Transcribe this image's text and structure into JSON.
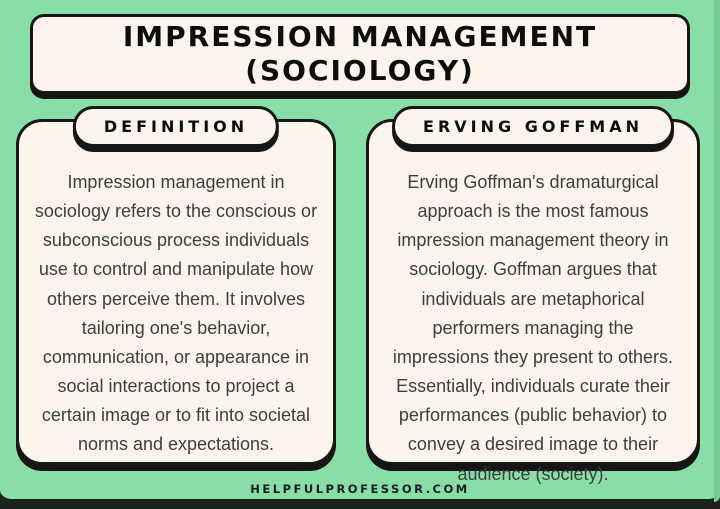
{
  "colors": {
    "background_green": "#89dea7",
    "edge_green_dark": "#74cc95",
    "card_cream": "#faf4ed",
    "border_black": "#161616",
    "body_text": "#3e3e3e",
    "footer_text": "#17201a"
  },
  "title": {
    "line1": "IMPRESSION MANAGEMENT",
    "line2": "(SOCIOLOGY)"
  },
  "panels": [
    {
      "heading": "DEFINITION",
      "body": "Impression management in sociology refers to the conscious or subconscious process individuals use to control and manipulate how others perceive them. It involves tailoring one's behavior, communication, or appearance in social interactions to project a certain image or to fit into societal norms and expectations."
    },
    {
      "heading": "ERVING GOFFMAN",
      "body": "Erving Goffman's dramaturgical approach is the most famous impression management theory in sociology. Goffman argues that individuals are metaphorical performers managing the impressions they present to others. Essentially, individuals curate their performances (public behavior) to convey a desired image to their audience (society)."
    }
  ],
  "footer": {
    "website": "HELPFULPROFESSOR.COM"
  }
}
